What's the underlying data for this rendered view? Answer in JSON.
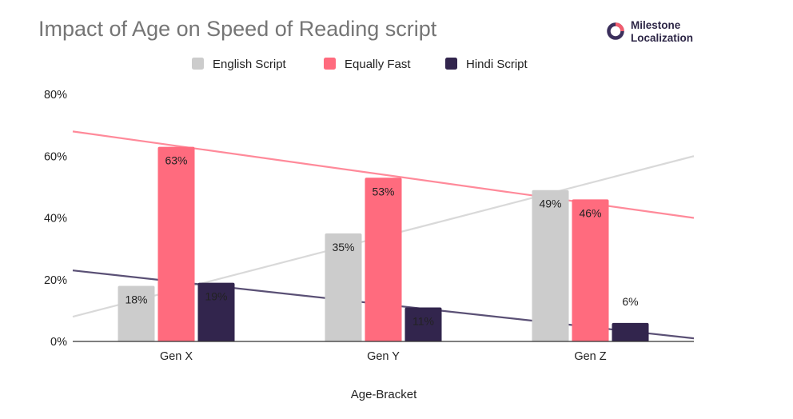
{
  "brand": {
    "line1": "Milestone",
    "line2": "Localization",
    "ring_color": "#3b2f5c",
    "accent_color": "#f25c6e"
  },
  "chart_data": {
    "type": "bar",
    "title": "Impact of Age on Speed of Reading script",
    "xlabel": "Age-Bracket",
    "ylabel": "",
    "categories": [
      "Gen X",
      "Gen Y",
      "Gen Z"
    ],
    "ylim": [
      0,
      80
    ],
    "yticks": [
      "0%",
      "20%",
      "40%",
      "60%",
      "80%"
    ],
    "legend_position": "top",
    "grid": false,
    "series": [
      {
        "name": "English Script",
        "color": "#cccccc",
        "values": [
          18,
          35,
          49
        ],
        "labels": [
          "18%",
          "35%",
          "49%"
        ]
      },
      {
        "name": "Equally Fast",
        "color": "#ff6b7e",
        "values": [
          63,
          53,
          46
        ],
        "labels": [
          "63%",
          "53%",
          "46%"
        ]
      },
      {
        "name": "Hindi Script",
        "color": "#32254d",
        "values": [
          19,
          11,
          6
        ],
        "labels": [
          "19%",
          "11%",
          "6%"
        ]
      }
    ],
    "trendlines": [
      {
        "series": "English Script",
        "color": "#d9d9d9",
        "start": 8,
        "end": 60
      },
      {
        "series": "Equally Fast",
        "color": "#ff8a9a",
        "start": 68,
        "end": 40
      },
      {
        "series": "Hindi Script",
        "color": "#5a5075",
        "start": 23,
        "end": 1
      }
    ]
  }
}
